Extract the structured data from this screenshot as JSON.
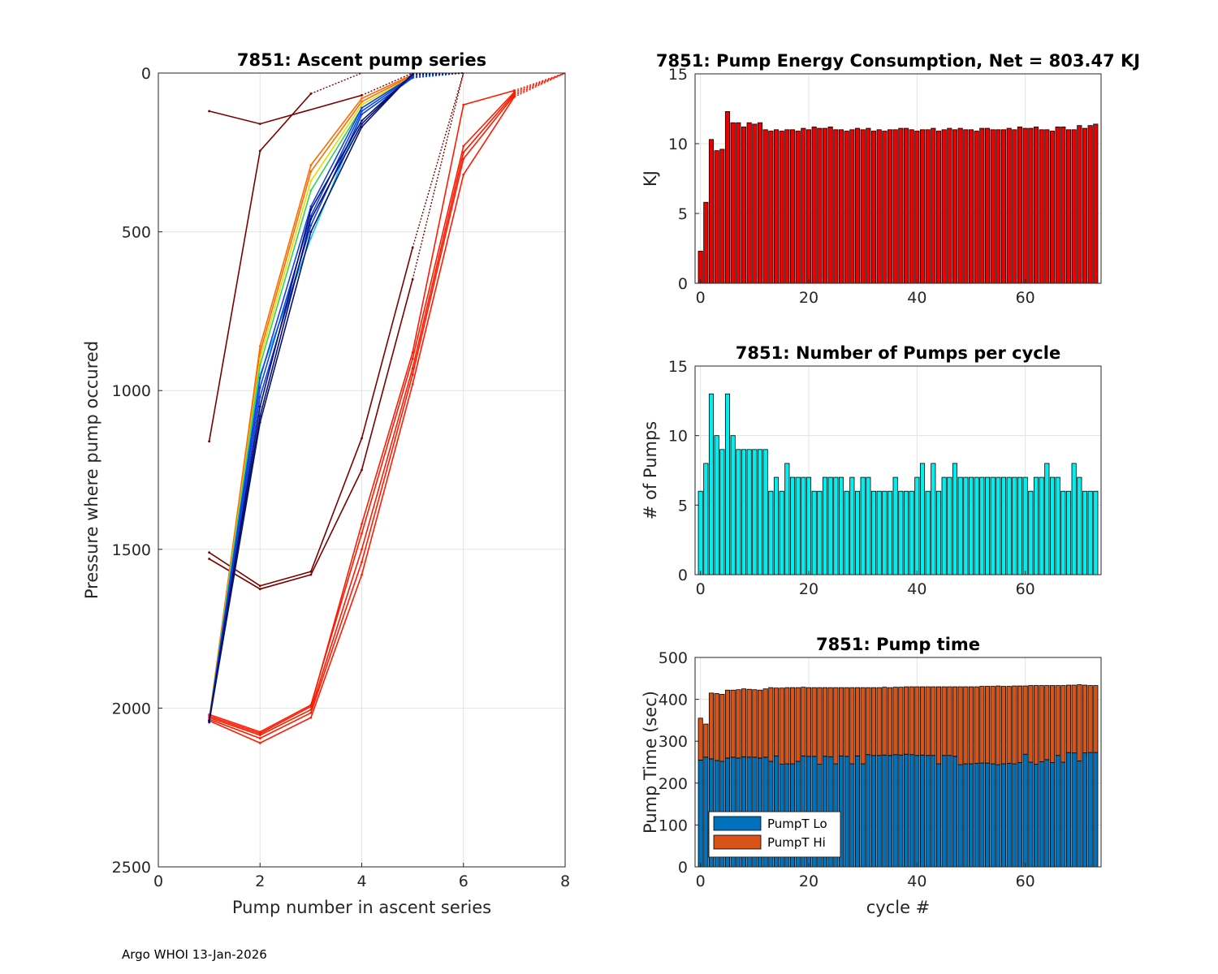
{
  "footer": "Argo WHOI 13-Jan-2026",
  "chart_data": [
    {
      "id": "ascent",
      "type": "line",
      "title": "7851: Ascent pump series",
      "xlabel": "Pump number in ascent series",
      "ylabel": "Pressure where pump occured",
      "xlim": [
        0,
        8
      ],
      "ylim": [
        0,
        2500
      ],
      "y_reversed": true,
      "grid": true,
      "xticks": [
        "0",
        "2",
        "4",
        "6",
        "8"
      ],
      "yticks": [
        "0",
        "500",
        "1000",
        "1500",
        "2000",
        "2500"
      ],
      "colors": {
        "darkred": "#7a0000",
        "red": "#ff1a00",
        "orange": "#ff6a00",
        "yellow": "#e0e000",
        "green": "#30d060",
        "cyan": "#10c8f0",
        "blue": "#1040e0",
        "navy": "#06106e"
      },
      "series": [
        {
          "name": "darkred-1",
          "color": "#7a0000",
          "x": [
            1,
            2,
            4
          ],
          "y": [
            120,
            160,
            70
          ]
        },
        {
          "name": "darkred-2",
          "color": "#7a0000",
          "x": [
            1,
            2,
            3
          ],
          "y": [
            1160,
            245,
            65
          ]
        },
        {
          "name": "darkred-3",
          "color": "#7a0000",
          "x": [
            1,
            2,
            3,
            4,
            5
          ],
          "y": [
            1510,
            1615,
            1570,
            1150,
            550
          ]
        },
        {
          "name": "darkred-4",
          "color": "#7a0000",
          "x": [
            1,
            2,
            3,
            4,
            5
          ],
          "y": [
            1530,
            1625,
            1580,
            1250,
            650
          ]
        },
        {
          "name": "red-1",
          "color": "#ff1a00",
          "x": [
            1,
            2,
            3,
            4,
            5,
            6,
            7
          ],
          "y": [
            2020,
            2075,
            1990,
            1450,
            900,
            230,
            60
          ]
        },
        {
          "name": "red-2",
          "color": "#ff1a00",
          "x": [
            1,
            2,
            3,
            4,
            5,
            6,
            7
          ],
          "y": [
            2030,
            2085,
            2005,
            1500,
            930,
            250,
            65
          ]
        },
        {
          "name": "red-3",
          "color": "#ff1a00",
          "x": [
            1,
            2,
            3,
            4,
            5,
            6,
            7
          ],
          "y": [
            2035,
            2095,
            2015,
            1540,
            950,
            270,
            70
          ]
        },
        {
          "name": "red-4",
          "color": "#ff1a00",
          "x": [
            1,
            2,
            3,
            4,
            5,
            6,
            7
          ],
          "y": [
            2040,
            2110,
            2030,
            1580,
            980,
            320,
            75
          ]
        },
        {
          "name": "red-5",
          "color": "#ff1a00",
          "x": [
            1,
            2,
            3,
            4,
            5,
            6,
            7
          ],
          "y": [
            2025,
            2080,
            1995,
            1420,
            880,
            100,
            55
          ]
        },
        {
          "name": "orange-1",
          "color": "#ff6a00",
          "x": [
            1,
            2,
            3,
            4,
            5
          ],
          "y": [
            2035,
            860,
            290,
            80,
            5
          ]
        },
        {
          "name": "orange-2",
          "color": "#ff6a00",
          "x": [
            1,
            2,
            3,
            4,
            5
          ],
          "y": [
            2040,
            880,
            310,
            90,
            8
          ]
        },
        {
          "name": "yellow-1",
          "color": "#e0e000",
          "x": [
            1,
            2,
            3,
            4,
            5
          ],
          "y": [
            2040,
            900,
            340,
            100,
            10
          ]
        },
        {
          "name": "green-1",
          "color": "#30d060",
          "x": [
            1,
            2,
            3,
            4,
            5
          ],
          "y": [
            2040,
            920,
            370,
            110,
            10
          ]
        },
        {
          "name": "cyan-1",
          "color": "#10c8f0",
          "x": [
            1,
            2,
            3,
            4,
            5
          ],
          "y": [
            2040,
            950,
            520,
            130,
            15
          ]
        },
        {
          "name": "blue-1",
          "color": "#1040e0",
          "x": [
            1,
            2,
            3,
            4,
            5
          ],
          "y": [
            2040,
            960,
            420,
            110,
            10
          ]
        },
        {
          "name": "blue-2",
          "color": "#1040e0",
          "x": [
            1,
            2,
            3,
            4,
            5
          ],
          "y": [
            2040,
            990,
            450,
            120,
            12
          ]
        },
        {
          "name": "blue-3",
          "color": "#1040e0",
          "x": [
            1,
            2,
            3,
            4,
            5
          ],
          "y": [
            2040,
            1020,
            480,
            130,
            15
          ]
        },
        {
          "name": "navy-1",
          "color": "#06106e",
          "x": [
            1,
            2,
            3,
            4,
            5
          ],
          "y": [
            2040,
            1050,
            430,
            150,
            5
          ]
        },
        {
          "name": "navy-2",
          "color": "#06106e",
          "x": [
            1,
            2,
            3,
            4,
            5
          ],
          "y": [
            2040,
            1080,
            460,
            160,
            3
          ]
        },
        {
          "name": "navy-3",
          "color": "#06106e",
          "x": [
            1,
            2,
            3,
            4,
            5
          ],
          "y": [
            2045,
            1100,
            500,
            170,
            2
          ]
        }
      ]
    },
    {
      "id": "energy",
      "type": "bar",
      "title": "7851: Pump Energy Consumption,  Net = 803.47 KJ",
      "xlabel": "",
      "ylabel": "KJ",
      "xlim": [
        -1,
        74
      ],
      "ylim": [
        0,
        15
      ],
      "grid": true,
      "xticks": [
        "0",
        "20",
        "40",
        "60"
      ],
      "yticks": [
        "0",
        "5",
        "10",
        "15"
      ],
      "bar_color": "#ee0000",
      "x_start": 0,
      "values": [
        2.3,
        5.8,
        10.3,
        9.5,
        9.6,
        12.3,
        11.5,
        11.5,
        11.2,
        11.5,
        11.4,
        11.5,
        11.0,
        10.9,
        11.0,
        10.9,
        11.0,
        11.0,
        10.9,
        11.1,
        11.0,
        11.2,
        11.1,
        11.1,
        11.2,
        11.0,
        11.0,
        10.9,
        11.0,
        11.1,
        11.0,
        11.1,
        10.9,
        11.0,
        10.9,
        11.0,
        11.0,
        11.1,
        11.1,
        11.0,
        10.9,
        11.0,
        11.0,
        11.1,
        10.9,
        11.0,
        11.1,
        11.0,
        11.1,
        11.0,
        11.0,
        10.9,
        11.1,
        11.1,
        11.0,
        11.0,
        11.0,
        11.1,
        11.0,
        11.2,
        11.1,
        11.1,
        11.2,
        11.0,
        11.0,
        10.9,
        11.2,
        11.2,
        11.0,
        11.0,
        11.3,
        11.1,
        11.3,
        11.4
      ]
    },
    {
      "id": "numpumps",
      "type": "bar",
      "title": "7851: Number of Pumps per cycle",
      "xlabel": "",
      "ylabel": "# of Pumps",
      "xlim": [
        -1,
        74
      ],
      "ylim": [
        0,
        15
      ],
      "grid": true,
      "xticks": [
        "0",
        "20",
        "40",
        "60"
      ],
      "yticks": [
        "0",
        "5",
        "10",
        "15"
      ],
      "bar_color": "#00f0f0",
      "x_start": 0,
      "values": [
        6,
        8,
        13,
        10,
        9,
        13,
        10,
        9,
        9,
        9,
        9,
        9,
        9,
        6,
        7,
        6,
        8,
        7,
        7,
        7,
        7,
        6,
        6,
        7,
        7,
        7,
        7,
        6,
        7,
        6,
        7,
        7,
        6,
        6,
        6,
        6,
        7,
        6,
        6,
        6,
        7,
        8,
        6,
        8,
        6,
        7,
        7,
        8,
        7,
        7,
        7,
        7,
        7,
        7,
        7,
        7,
        7,
        7,
        7,
        7,
        7,
        6,
        7,
        7,
        8,
        7,
        7,
        6,
        6,
        8,
        7,
        6,
        6,
        6
      ]
    },
    {
      "id": "pumptime",
      "type": "bar",
      "stacked": true,
      "title": "7851: Pump time",
      "xlabel": "cycle #",
      "ylabel": "Pump Time (sec)",
      "xlim": [
        -1,
        74
      ],
      "ylim": [
        0,
        500
      ],
      "grid": true,
      "xticks": [
        "0",
        "20",
        "40",
        "60"
      ],
      "yticks": [
        "0",
        "100",
        "200",
        "300",
        "400",
        "500"
      ],
      "legend_position": "bottom-left",
      "x_start": 0,
      "series": [
        {
          "name": "PumpT Lo",
          "color": "#0072bd",
          "values": [
            255,
            262,
            258,
            254,
            252,
            260,
            262,
            260,
            263,
            262,
            262,
            260,
            262,
            252,
            265,
            245,
            246,
            246,
            252,
            265,
            264,
            264,
            245,
            264,
            263,
            246,
            265,
            264,
            246,
            265,
            246,
            268,
            266,
            266,
            267,
            266,
            268,
            267,
            269,
            268,
            266,
            267,
            266,
            266,
            246,
            266,
            266,
            264,
            244,
            246,
            246,
            247,
            248,
            248,
            246,
            244,
            246,
            247,
            246,
            249,
            269,
            250,
            245,
            251,
            256,
            249,
            266,
            250,
            273,
            272,
            253,
            272,
            273,
            273
          ]
        },
        {
          "name": "PumpT Hi",
          "color": "#d95319",
          "values": [
            100,
            79,
            157,
            160,
            160,
            162,
            160,
            163,
            162,
            162,
            161,
            162,
            163,
            176,
            162,
            182,
            182,
            182,
            176,
            164,
            164,
            164,
            183,
            164,
            165,
            182,
            163,
            164,
            182,
            163,
            182,
            160,
            162,
            162,
            162,
            162,
            161,
            162,
            161,
            162,
            164,
            163,
            164,
            164,
            184,
            164,
            164,
            166,
            186,
            184,
            184,
            183,
            183,
            183,
            185,
            188,
            185,
            184,
            186,
            183,
            163,
            183,
            188,
            182,
            177,
            184,
            167,
            183,
            161,
            162,
            182,
            162,
            160,
            160
          ]
        }
      ]
    }
  ]
}
